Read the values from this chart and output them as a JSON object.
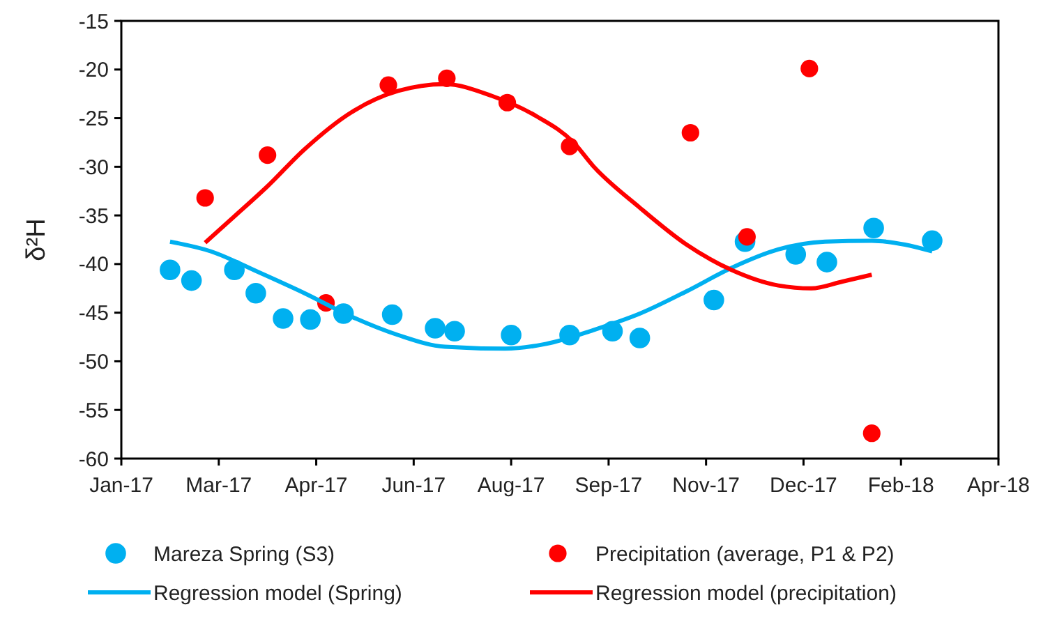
{
  "chart_data": {
    "type": "scatter",
    "ylabel": "δ²H",
    "marker": "circle",
    "legend": "bottom",
    "grid": false,
    "xlim": [
      "2017-01-14",
      "2018-04-09"
    ],
    "xticks": [
      {
        "value": "2017-01-14",
        "label": "Jan-17"
      },
      {
        "value": "2017-03-05",
        "label": "Mar-17"
      },
      {
        "value": "2017-04-24",
        "label": "Apr-17"
      },
      {
        "value": "2017-06-13",
        "label": "Jun-17"
      },
      {
        "value": "2017-08-02",
        "label": "Aug-17"
      },
      {
        "value": "2017-09-21",
        "label": "Sep-17"
      },
      {
        "value": "2017-11-10",
        "label": "Nov-17"
      },
      {
        "value": "2017-12-30",
        "label": "Dec-17"
      },
      {
        "value": "2018-02-18",
        "label": "Feb-18"
      },
      {
        "value": "2018-04-09",
        "label": "Apr-18"
      }
    ],
    "ylim": [
      -60,
      -15
    ],
    "yticks": [
      -60,
      -55,
      -50,
      -45,
      -40,
      -35,
      -30,
      -25,
      -20,
      -15
    ],
    "series": [
      {
        "name": "Mareza Spring (S3)",
        "color": "#00b0f0",
        "x": [
          "2017-02-08",
          "2017-02-19",
          "2017-03-13",
          "2017-03-24",
          "2017-04-07",
          "2017-04-21",
          "2017-05-08",
          "2017-06-02",
          "2017-06-24",
          "2017-07-04",
          "2017-08-02",
          "2017-09-01",
          "2017-09-23",
          "2017-10-07",
          "2017-11-14",
          "2017-11-30",
          "2017-12-26",
          "2018-01-11",
          "2018-02-04",
          "2018-03-06"
        ],
        "values": [
          -40.6,
          -41.7,
          -40.6,
          -43.0,
          -45.6,
          -45.7,
          -45.1,
          -45.2,
          -46.6,
          -46.9,
          -47.3,
          -47.3,
          -46.9,
          -47.6,
          -43.7,
          -37.7,
          -39.0,
          -39.8,
          -36.3,
          -37.6
        ]
      },
      {
        "name": "Precipitation (average, P1 & P2)",
        "color": "#ff0000",
        "x": [
          "2017-02-26",
          "2017-03-30",
          "2017-04-29",
          "2017-05-31",
          "2017-06-30",
          "2017-07-31",
          "2017-09-01",
          "2017-11-02",
          "2017-12-01",
          "2018-01-02",
          "2018-02-03"
        ],
        "values": [
          -33.2,
          -28.8,
          -44.0,
          -21.6,
          -20.9,
          -23.4,
          -27.9,
          -26.5,
          -37.2,
          -19.9,
          -57.4
        ]
      },
      {
        "name": "Regression model (Spring)",
        "type": "line",
        "marker": "none",
        "color": "#00b0f0",
        "x": [
          "2017-02-08",
          "2017-03-01",
          "2017-03-25",
          "2017-04-18",
          "2017-05-12",
          "2017-06-05",
          "2017-06-29",
          "2017-07-30",
          "2017-08-20",
          "2017-09-13",
          "2017-10-07",
          "2017-10-31",
          "2017-11-23",
          "2017-12-17",
          "2018-01-10",
          "2018-02-03",
          "2018-02-20",
          "2018-03-06"
        ],
        "values": [
          -37.7,
          -38.7,
          -40.8,
          -43.0,
          -45.4,
          -47.3,
          -48.5,
          -48.7,
          -48.2,
          -46.8,
          -45.1,
          -42.8,
          -40.4,
          -38.5,
          -37.7,
          -37.6,
          -38.0,
          -38.7
        ]
      },
      {
        "name": "Regression model (precipitation)",
        "type": "line",
        "marker": "none",
        "color": "#ff0000",
        "x": [
          "2017-02-26",
          "2017-03-13",
          "2017-03-30",
          "2017-04-18",
          "2017-05-12",
          "2017-06-05",
          "2017-06-29",
          "2017-07-23",
          "2017-08-15",
          "2017-09-03",
          "2017-09-13",
          "2017-10-07",
          "2017-10-31",
          "2017-11-23",
          "2017-12-17",
          "2018-01-03",
          "2018-01-19",
          "2018-02-03"
        ],
        "values": [
          -37.8,
          -35.1,
          -32.0,
          -28.2,
          -24.4,
          -22.2,
          -21.5,
          -22.7,
          -24.8,
          -27.5,
          -29.9,
          -34.2,
          -38.0,
          -40.6,
          -42.2,
          -42.5,
          -41.8,
          -41.1
        ]
      }
    ]
  }
}
